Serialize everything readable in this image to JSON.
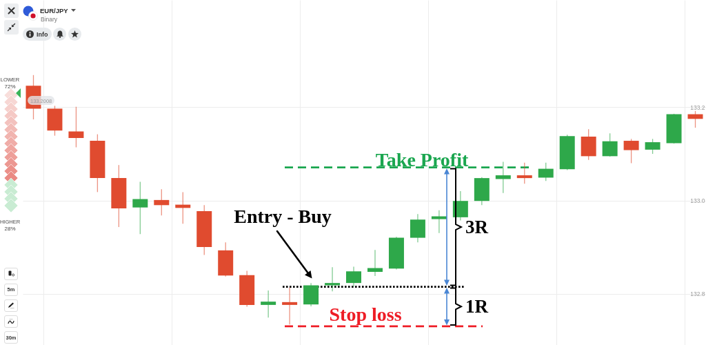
{
  "chart_data": {
    "type": "candlestick",
    "title": "EUR/JPY",
    "subtitle": "Binary",
    "categories": [
      null,
      null,
      null,
      null,
      null,
      null,
      null,
      null,
      null,
      null,
      null,
      null,
      null,
      null,
      null,
      null,
      null,
      null,
      null,
      null,
      null,
      null,
      null,
      null,
      null,
      null,
      null,
      null,
      null,
      null,
      null,
      null
    ],
    "ohlc": [
      [
        133.246,
        133.269,
        133.174,
        133.197
      ],
      [
        133.197,
        133.203,
        133.139,
        133.15
      ],
      [
        133.148,
        133.201,
        133.114,
        133.134
      ],
      [
        133.128,
        133.142,
        133.018,
        133.048
      ],
      [
        133.048,
        133.076,
        132.943,
        132.983
      ],
      [
        132.985,
        133.04,
        132.928,
        133.003
      ],
      [
        133.001,
        133.024,
        132.968,
        132.99
      ],
      [
        132.991,
        133.018,
        132.95,
        132.984
      ],
      [
        132.977,
        132.99,
        132.883,
        132.9
      ],
      [
        132.893,
        132.91,
        132.837,
        132.839
      ],
      [
        132.84,
        132.849,
        132.772,
        132.776
      ],
      [
        132.776,
        132.807,
        132.749,
        132.783
      ],
      [
        132.782,
        132.813,
        132.734,
        132.776
      ],
      [
        132.777,
        132.823,
        132.773,
        132.818
      ],
      [
        132.818,
        132.857,
        132.805,
        132.823
      ],
      [
        132.823,
        132.858,
        132.815,
        132.848
      ],
      [
        132.847,
        132.894,
        132.838,
        132.855
      ],
      [
        132.854,
        132.922,
        132.852,
        132.92
      ],
      [
        132.92,
        132.971,
        132.91,
        132.959
      ],
      [
        132.96,
        132.979,
        132.93,
        132.966
      ],
      [
        132.964,
        133.02,
        132.957,
        132.999
      ],
      [
        132.999,
        133.05,
        132.99,
        133.048
      ],
      [
        133.046,
        133.083,
        133.016,
        133.054
      ],
      [
        133.054,
        133.081,
        133.036,
        133.048
      ],
      [
        133.049,
        133.081,
        133.042,
        133.068
      ],
      [
        133.067,
        133.141,
        133.065,
        133.138
      ],
      [
        133.137,
        133.153,
        133.087,
        133.095
      ],
      [
        133.095,
        133.144,
        133.094,
        133.127
      ],
      [
        133.128,
        133.132,
        133.08,
        133.108
      ],
      [
        133.109,
        133.132,
        133.1,
        133.125
      ],
      [
        133.123,
        133.186,
        133.122,
        133.185
      ],
      [
        133.185,
        133.192,
        133.156,
        133.175
      ]
    ],
    "colors": [
      "#e04b2f",
      "#e04b2f",
      "#e04b2f",
      "#e04b2f",
      "#e04b2f",
      "#2ea84a",
      "#e04b2f",
      "#e04b2f",
      "#e04b2f",
      "#e04b2f",
      "#e04b2f",
      "#2ea84a",
      "#e04b2f",
      "#2ea84a",
      "#2ea84a",
      "#2ea84a",
      "#2ea84a",
      "#2ea84a",
      "#2ea84a",
      "#2ea84a",
      "#2ea84a",
      "#2ea84a",
      "#2ea84a",
      "#e04b2f",
      "#2ea84a",
      "#2ea84a",
      "#e04b2f",
      "#2ea84a",
      "#e04b2f",
      "#2ea84a",
      "#2ea84a",
      "#e04b2f"
    ],
    "ylim": [
      132.69,
      133.43
    ],
    "yticks": [
      132.8,
      {
        "value": 133,
        "label": "133.0"
      },
      133.2
    ],
    "tick_labels": "y",
    "grid": true,
    "ref_lines": [
      {
        "axis": "y",
        "value": 133.071,
        "label": "Take Profit",
        "color": "#1aa64f",
        "line_style": "dashed"
      },
      {
        "axis": "y",
        "value": 132.815,
        "label": "Entry - Buy",
        "color": "#000000",
        "line_style": "dotted"
      },
      {
        "axis": "y",
        "value": 132.73,
        "label": "Stop loss",
        "color": "#ee1c25",
        "line_style": "dashed"
      }
    ],
    "annotations": [
      "3R",
      "1R",
      "Info",
      "LOWER",
      "72%",
      "HIGHER",
      "28%",
      "133.2008",
      "5m",
      "30m"
    ]
  }
}
